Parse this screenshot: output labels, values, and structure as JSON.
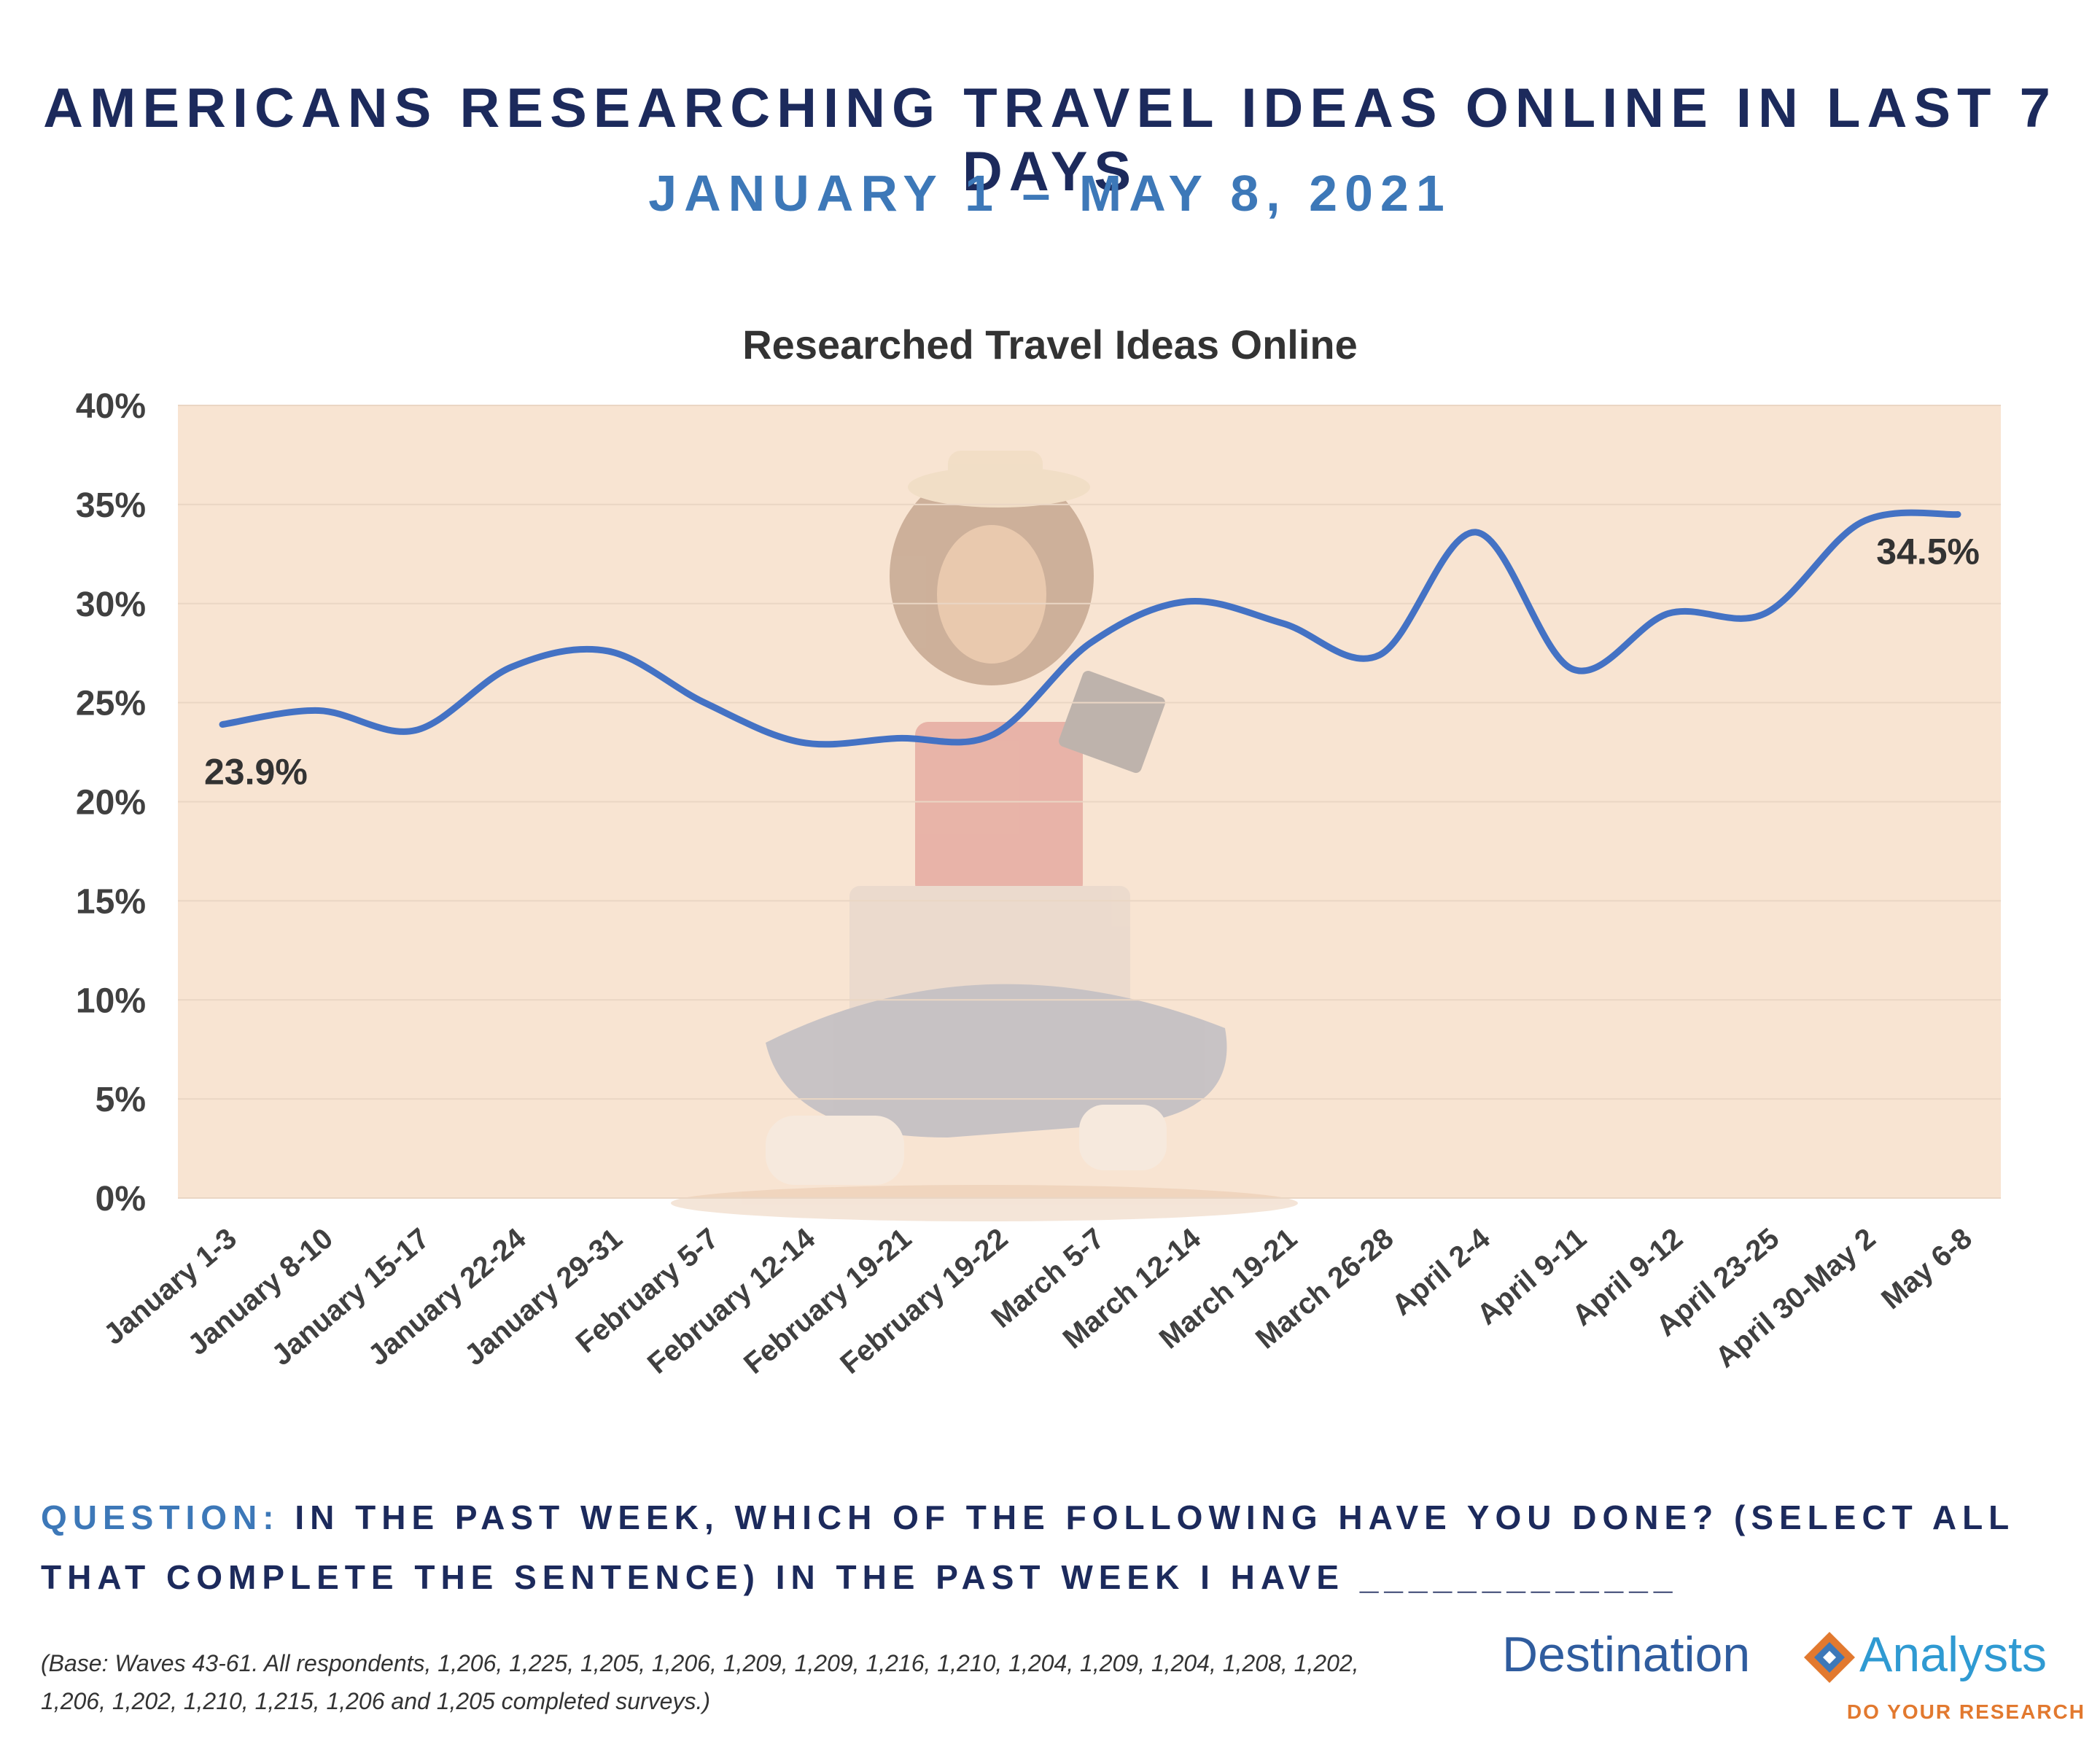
{
  "header": {
    "title": "AMERICANS RESEARCHING TRAVEL IDEAS ONLINE IN LAST 7 DAYS",
    "subtitle": "JANUARY 1 – MAY 8, 2021"
  },
  "chart_data": {
    "type": "line",
    "title": "Researched Travel Ideas Online",
    "xlabel": "",
    "ylabel": "",
    "ylim": [
      0,
      40
    ],
    "y_ticks": [
      "0%",
      "5%",
      "10%",
      "15%",
      "20%",
      "25%",
      "30%",
      "35%",
      "40%"
    ],
    "grid": true,
    "legend": "none",
    "categories": [
      "January 1-3",
      "January 8-10",
      "January 15-17",
      "January 22-24",
      "January 29-31",
      "February 5-7",
      "February 12-14",
      "February 19-21",
      "February 19-22",
      "March 5-7",
      "March 12-14",
      "March 19-21",
      "March 26-28",
      "April 2-4",
      "April 9-11",
      "April 9-12",
      "April 23-25",
      "April 30-May 2",
      "May 6-8"
    ],
    "series": [
      {
        "values": [
          23.9,
          24.6,
          23.6,
          26.8,
          27.6,
          25.0,
          23.0,
          23.2,
          23.4,
          28.0,
          30.1,
          29.0,
          27.4,
          33.6,
          26.7,
          29.5,
          29.5,
          34.1,
          34.5
        ]
      }
    ],
    "data_labels": [
      {
        "index": 0,
        "text": "23.9%"
      },
      {
        "index": 18,
        "text": "34.5%"
      }
    ],
    "colors": {
      "line": "#4472c4",
      "plot_background": "#f8e4d2",
      "grid": "#ead6c4",
      "axis_text": "#404040"
    }
  },
  "footer": {
    "question_label": "QUESTION:",
    "question_text": "IN THE PAST WEEK, WHICH OF THE FOLLOWING HAVE YOU DONE? (SELECT ALL THAT COMPLETE THE SENTENCE) IN THE PAST WEEK I HAVE _____________",
    "base_note": "(Base: Waves 43-61. All respondents, 1,206, 1,225, 1,205, 1,206, 1,209, 1,209, 1,216, 1,210, 1,204, 1,209, 1,204, 1,208, 1,202, 1,206, 1,202, 1,210, 1,215, 1,206 and 1,205 completed surveys.)"
  },
  "logo": {
    "name_left": "Destination",
    "name_right": "Analysts",
    "tagline": "DO YOUR RESEARCH",
    "colors": {
      "left": "#2f5c9e",
      "right": "#2f9ad2",
      "accent": "#e2792f"
    }
  }
}
